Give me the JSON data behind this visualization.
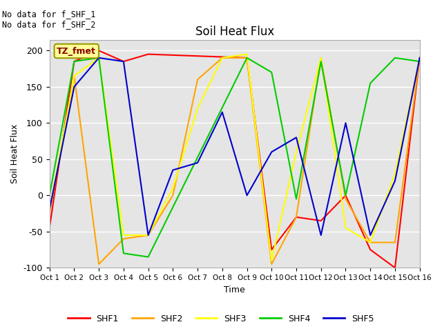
{
  "title": "Soil Heat Flux",
  "xlabel": "Time",
  "ylabel": "Soil Heat Flux",
  "xlim": [
    1,
    16
  ],
  "ylim": [
    -100,
    215
  ],
  "yticks": [
    -100,
    -50,
    0,
    50,
    100,
    150,
    200
  ],
  "xtick_labels": [
    "Oct 1",
    "Oct 2",
    "Oct 3",
    "Oct 4",
    "Oct 5",
    "Oct 6",
    "Oct 7",
    "Oct 8",
    "Oct 9",
    "Oct 10",
    "Oct 11",
    "Oct 12",
    "Oct 13",
    "Oct 14",
    "Oct 15",
    "Oct 16"
  ],
  "xtick_positions": [
    1,
    2,
    3,
    4,
    5,
    6,
    7,
    8,
    9,
    10,
    11,
    12,
    13,
    14,
    15,
    16
  ],
  "annotation_text": "No data for f_SHF_1\nNo data for f_SHF_2",
  "legend_label": "TZ_fmet",
  "series": {
    "SHF1": {
      "color": "#ff0000",
      "x": [
        1,
        2,
        3,
        4,
        5,
        9,
        10,
        11,
        12,
        13,
        14,
        15,
        16
      ],
      "y": [
        -45,
        185,
        200,
        185,
        195,
        190,
        -75,
        -30,
        -35,
        0,
        -75,
        -100,
        190
      ]
    },
    "SHF2": {
      "color": "#ffa500",
      "x": [
        1,
        2,
        3,
        4,
        5,
        6,
        7,
        8,
        9,
        10,
        11,
        12,
        13,
        14,
        15,
        16
      ],
      "y": [
        -25,
        165,
        -95,
        -60,
        -55,
        0,
        160,
        190,
        190,
        -95,
        -30,
        190,
        -5,
        -65,
        -65,
        190
      ]
    },
    "SHF3": {
      "color": "#ffff00",
      "x": [
        1,
        2,
        3,
        4,
        5,
        6,
        7,
        8,
        9,
        10,
        11,
        12,
        13,
        14,
        15,
        16
      ],
      "y": [
        -20,
        165,
        190,
        -55,
        -55,
        10,
        120,
        190,
        195,
        -90,
        60,
        190,
        -45,
        -65,
        30,
        190
      ]
    },
    "SHF4": {
      "color": "#00cc00",
      "x": [
        1,
        2,
        3,
        4,
        5,
        9,
        10,
        11,
        12,
        13,
        14,
        15,
        16
      ],
      "y": [
        0,
        185,
        190,
        -80,
        -85,
        190,
        170,
        -5,
        185,
        0,
        155,
        190,
        185
      ]
    },
    "SHF5": {
      "color": "#0000cc",
      "x": [
        1,
        2,
        3,
        4,
        5,
        6,
        7,
        8,
        9,
        10,
        11,
        12,
        13,
        14,
        15,
        16
      ],
      "y": [
        -20,
        150,
        190,
        185,
        -55,
        35,
        45,
        115,
        0,
        60,
        80,
        -55,
        100,
        -55,
        20,
        190
      ]
    }
  },
  "background_color": "#e5e5e5",
  "text_color": "#000000",
  "legend_box_color": "#ffff99",
  "legend_box_edge": "#999900",
  "legend_text_color": "#880000",
  "figsize": [
    6.4,
    4.8
  ],
  "dpi": 100
}
